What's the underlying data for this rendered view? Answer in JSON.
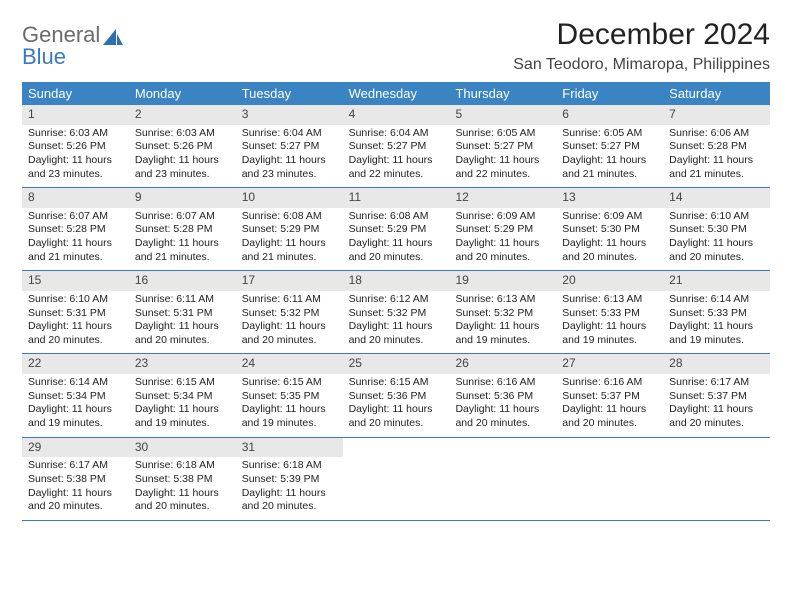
{
  "colors": {
    "header_bg": "#3a84c4",
    "header_text": "#ffffff",
    "daynum_bg": "#e8e8e8",
    "week_border": "#3a7bbf",
    "logo_gray": "#6b6b6b",
    "logo_blue": "#3a7bbf"
  },
  "logo": {
    "part1": "General",
    "part2": "Blue"
  },
  "title": "December 2024",
  "location": "San Teodoro, Mimaropa, Philippines",
  "weekdays": [
    "Sunday",
    "Monday",
    "Tuesday",
    "Wednesday",
    "Thursday",
    "Friday",
    "Saturday"
  ],
  "days": [
    {
      "n": "1",
      "sr": "6:03 AM",
      "ss": "5:26 PM",
      "dl": "11 hours and 23 minutes."
    },
    {
      "n": "2",
      "sr": "6:03 AM",
      "ss": "5:26 PM",
      "dl": "11 hours and 23 minutes."
    },
    {
      "n": "3",
      "sr": "6:04 AM",
      "ss": "5:27 PM",
      "dl": "11 hours and 23 minutes."
    },
    {
      "n": "4",
      "sr": "6:04 AM",
      "ss": "5:27 PM",
      "dl": "11 hours and 22 minutes."
    },
    {
      "n": "5",
      "sr": "6:05 AM",
      "ss": "5:27 PM",
      "dl": "11 hours and 22 minutes."
    },
    {
      "n": "6",
      "sr": "6:05 AM",
      "ss": "5:27 PM",
      "dl": "11 hours and 21 minutes."
    },
    {
      "n": "7",
      "sr": "6:06 AM",
      "ss": "5:28 PM",
      "dl": "11 hours and 21 minutes."
    },
    {
      "n": "8",
      "sr": "6:07 AM",
      "ss": "5:28 PM",
      "dl": "11 hours and 21 minutes."
    },
    {
      "n": "9",
      "sr": "6:07 AM",
      "ss": "5:28 PM",
      "dl": "11 hours and 21 minutes."
    },
    {
      "n": "10",
      "sr": "6:08 AM",
      "ss": "5:29 PM",
      "dl": "11 hours and 21 minutes."
    },
    {
      "n": "11",
      "sr": "6:08 AM",
      "ss": "5:29 PM",
      "dl": "11 hours and 20 minutes."
    },
    {
      "n": "12",
      "sr": "6:09 AM",
      "ss": "5:29 PM",
      "dl": "11 hours and 20 minutes."
    },
    {
      "n": "13",
      "sr": "6:09 AM",
      "ss": "5:30 PM",
      "dl": "11 hours and 20 minutes."
    },
    {
      "n": "14",
      "sr": "6:10 AM",
      "ss": "5:30 PM",
      "dl": "11 hours and 20 minutes."
    },
    {
      "n": "15",
      "sr": "6:10 AM",
      "ss": "5:31 PM",
      "dl": "11 hours and 20 minutes."
    },
    {
      "n": "16",
      "sr": "6:11 AM",
      "ss": "5:31 PM",
      "dl": "11 hours and 20 minutes."
    },
    {
      "n": "17",
      "sr": "6:11 AM",
      "ss": "5:32 PM",
      "dl": "11 hours and 20 minutes."
    },
    {
      "n": "18",
      "sr": "6:12 AM",
      "ss": "5:32 PM",
      "dl": "11 hours and 20 minutes."
    },
    {
      "n": "19",
      "sr": "6:13 AM",
      "ss": "5:32 PM",
      "dl": "11 hours and 19 minutes."
    },
    {
      "n": "20",
      "sr": "6:13 AM",
      "ss": "5:33 PM",
      "dl": "11 hours and 19 minutes."
    },
    {
      "n": "21",
      "sr": "6:14 AM",
      "ss": "5:33 PM",
      "dl": "11 hours and 19 minutes."
    },
    {
      "n": "22",
      "sr": "6:14 AM",
      "ss": "5:34 PM",
      "dl": "11 hours and 19 minutes."
    },
    {
      "n": "23",
      "sr": "6:15 AM",
      "ss": "5:34 PM",
      "dl": "11 hours and 19 minutes."
    },
    {
      "n": "24",
      "sr": "6:15 AM",
      "ss": "5:35 PM",
      "dl": "11 hours and 19 minutes."
    },
    {
      "n": "25",
      "sr": "6:15 AM",
      "ss": "5:36 PM",
      "dl": "11 hours and 20 minutes."
    },
    {
      "n": "26",
      "sr": "6:16 AM",
      "ss": "5:36 PM",
      "dl": "11 hours and 20 minutes."
    },
    {
      "n": "27",
      "sr": "6:16 AM",
      "ss": "5:37 PM",
      "dl": "11 hours and 20 minutes."
    },
    {
      "n": "28",
      "sr": "6:17 AM",
      "ss": "5:37 PM",
      "dl": "11 hours and 20 minutes."
    },
    {
      "n": "29",
      "sr": "6:17 AM",
      "ss": "5:38 PM",
      "dl": "11 hours and 20 minutes."
    },
    {
      "n": "30",
      "sr": "6:18 AM",
      "ss": "5:38 PM",
      "dl": "11 hours and 20 minutes."
    },
    {
      "n": "31",
      "sr": "6:18 AM",
      "ss": "5:39 PM",
      "dl": "11 hours and 20 minutes."
    }
  ],
  "labels": {
    "sunrise": "Sunrise: ",
    "sunset": "Sunset: ",
    "daylight": "Daylight: "
  },
  "start_weekday": 0,
  "total_cells": 35
}
